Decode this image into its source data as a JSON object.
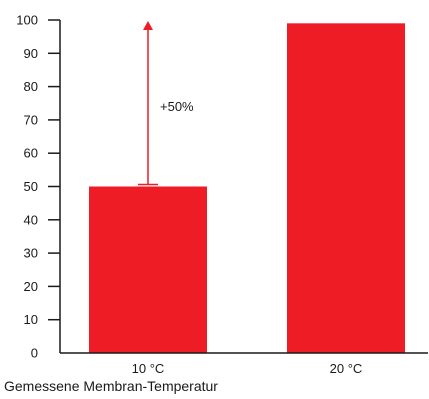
{
  "chart_data": {
    "type": "bar",
    "categories": [
      "10 °C",
      "20 °C"
    ],
    "values": [
      50,
      99
    ],
    "bar_color": "#ee1c25",
    "ylim": [
      0,
      100
    ],
    "yticks": [
      "0",
      "10",
      "20",
      "30",
      "40",
      "50",
      "60",
      "70",
      "80",
      "90",
      "100"
    ],
    "xlabel": "Gemessene Membran-Temperatur",
    "ylabel": "",
    "title": "",
    "grid": false,
    "annotation": {
      "label": "+50%",
      "from_value": 50,
      "to_value": 100,
      "category": "10 °C",
      "color": "#ee1c25"
    }
  }
}
